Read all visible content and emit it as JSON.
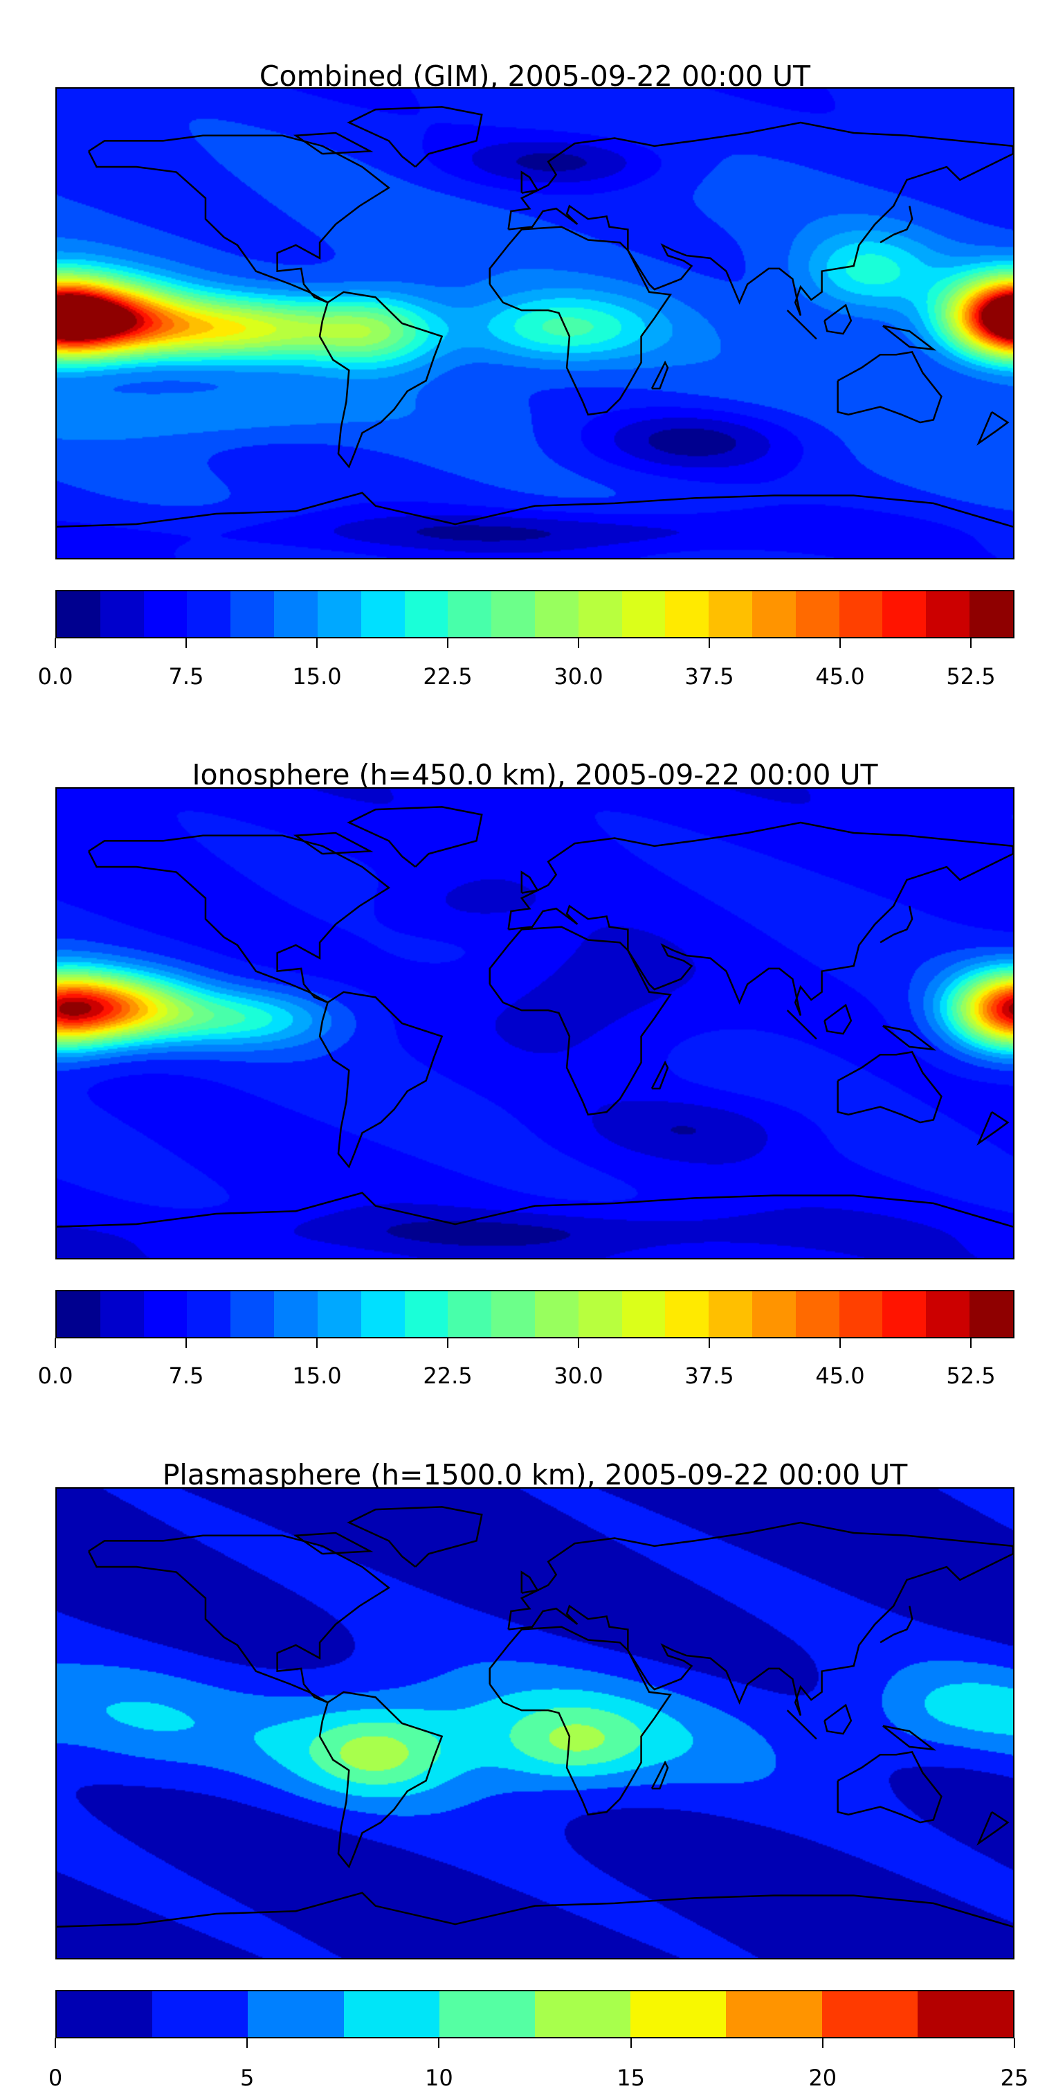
{
  "chart_data": [
    {
      "type": "heatmap",
      "title": "Combined (GIM), 2005-09-22 00:00 UT",
      "xlim": [
        -180,
        180
      ],
      "ylim": [
        -90,
        90
      ],
      "levels": {
        "min": 0,
        "max": 55,
        "step": 2.5
      },
      "colors": [
        "#00008f",
        "#0000cc",
        "#0000ff",
        "#0019ff",
        "#0050ff",
        "#0080ff",
        "#00a8ff",
        "#00e0ff",
        "#1affd8",
        "#48ffaa",
        "#6cff8a",
        "#98ff5e",
        "#b8ff3e",
        "#dbff1a",
        "#ffea00",
        "#ffbf00",
        "#ff9400",
        "#ff6a00",
        "#ff4000",
        "#ff1400",
        "#cc0000",
        "#8f0000"
      ],
      "ticks": [
        "0.0",
        "7.5",
        "15.0",
        "22.5",
        "30.0",
        "37.5",
        "45.0",
        "52.5"
      ],
      "tick_values": [
        0,
        7.5,
        15,
        22.5,
        30,
        37.5,
        45,
        52.5
      ],
      "base": 11,
      "features": [
        {
          "lon": -165,
          "lat": 2,
          "value": 34,
          "slon": 30,
          "slat": 14
        },
        {
          "lon": -115,
          "lat": -2,
          "value": 22,
          "slon": 45,
          "slat": 12
        },
        {
          "lon": -60,
          "lat": -3,
          "value": 14,
          "slon": 25,
          "slat": 14
        },
        {
          "lon": 10,
          "lat": -2,
          "value": 12,
          "slon": 35,
          "slat": 13
        },
        {
          "lon": 178,
          "lat": 3,
          "value": 30,
          "slon": 22,
          "slat": 15
        },
        {
          "lon": 125,
          "lat": 20,
          "value": 10,
          "slon": 25,
          "slat": 15
        },
        {
          "lon": -130,
          "lat": -35,
          "value": 5,
          "slon": 60,
          "slat": 10
        },
        {
          "lon": 60,
          "lat": -45,
          "value": -8,
          "slon": 40,
          "slat": 12
        },
        {
          "lon": 10,
          "lat": 62,
          "value": -7,
          "slon": 40,
          "slat": 10
        },
        {
          "lon": 0,
          "lat": -80,
          "value": -6,
          "slon": 120,
          "slat": 8
        }
      ]
    },
    {
      "type": "heatmap",
      "title": "Ionosphere  (h=450.0 km), 2005-09-22 00:00 UT",
      "xlim": [
        -180,
        180
      ],
      "ylim": [
        -90,
        90
      ],
      "levels": {
        "min": 0,
        "max": 55,
        "step": 2.5
      },
      "colors": [
        "#00008f",
        "#0000cc",
        "#0000ff",
        "#0019ff",
        "#0050ff",
        "#0080ff",
        "#00a8ff",
        "#00e0ff",
        "#1affd8",
        "#48ffaa",
        "#6cff8a",
        "#98ff5e",
        "#b8ff3e",
        "#dbff1a",
        "#ffea00",
        "#ffbf00",
        "#ff9400",
        "#ff6a00",
        "#ff4000",
        "#ff1400",
        "#cc0000",
        "#8f0000"
      ],
      "ticks": [
        "0.0",
        "7.5",
        "15.0",
        "22.5",
        "30.0",
        "37.5",
        "45.0",
        "52.5"
      ],
      "tick_values": [
        0,
        7.5,
        15,
        22.5,
        30,
        37.5,
        45,
        52.5
      ],
      "base": 8,
      "features": [
        {
          "lon": -160,
          "lat": 6,
          "value": 29,
          "slon": 30,
          "slat": 13
        },
        {
          "lon": -110,
          "lat": 2,
          "value": 12,
          "slon": 35,
          "slat": 11
        },
        {
          "lon": 178,
          "lat": 5,
          "value": 26,
          "slon": 22,
          "slat": 15
        },
        {
          "lon": 20,
          "lat": 10,
          "value": -5,
          "slon": 45,
          "slat": 25
        },
        {
          "lon": 60,
          "lat": -40,
          "value": -4,
          "slon": 40,
          "slat": 12
        },
        {
          "lon": -30,
          "lat": 45,
          "value": -3,
          "slon": 30,
          "slat": 12
        },
        {
          "lon": 0,
          "lat": -80,
          "value": -4,
          "slon": 120,
          "slat": 8
        }
      ]
    },
    {
      "type": "heatmap",
      "title": "Plasmasphere (h=1500.0 km), 2005-09-22 00:00 UT",
      "xlim": [
        -180,
        180
      ],
      "ylim": [
        -90,
        90
      ],
      "levels": {
        "min": 0,
        "max": 25,
        "step": 2.5
      },
      "colors": [
        "#0000b3",
        "#001aff",
        "#0080ff",
        "#00e5f8",
        "#55ffa3",
        "#a8ff4c",
        "#f8f800",
        "#ff9400",
        "#ff3a00",
        "#b40000"
      ],
      "ticks": [
        "0",
        "5",
        "10",
        "15",
        "20",
        "25"
      ],
      "tick_values": [
        0,
        5,
        10,
        15,
        20,
        25
      ],
      "base": 2,
      "features": [
        {
          "lon": -20,
          "lat": -5,
          "value": 7,
          "slon": 110,
          "slat": 25
        },
        {
          "lon": -60,
          "lat": -12,
          "value": 6,
          "slon": 25,
          "slat": 15
        },
        {
          "lon": 15,
          "lat": -8,
          "value": 5,
          "slon": 25,
          "slat": 14
        },
        {
          "lon": 160,
          "lat": 5,
          "value": 5.5,
          "slon": 35,
          "slat": 18
        },
        {
          "lon": -150,
          "lat": 0,
          "value": 3,
          "slon": 30,
          "slat": 20
        }
      ]
    }
  ]
}
